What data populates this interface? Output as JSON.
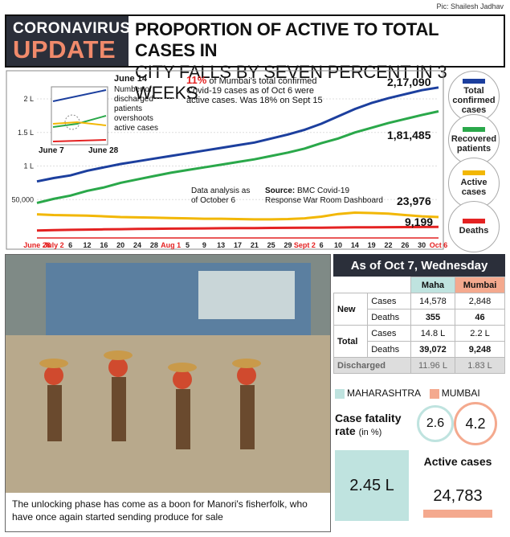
{
  "credit": "Pic: Shailesh Jadhav",
  "header": {
    "tag1": "CORONAVIRUS",
    "tag2": "UPDATE",
    "title": "PROPORTION OF ACTIVE TO TOTAL CASES IN",
    "subtitle": "CITY FALLS BY SEVEN PERCENT IN 3 WEEKS"
  },
  "chart_data": {
    "type": "line",
    "x": [
      "June 28",
      "July 2",
      "6",
      "12",
      "16",
      "20",
      "24",
      "28",
      "Aug 1",
      "5",
      "9",
      "13",
      "17",
      "21",
      "25",
      "29",
      "Sept 2",
      "6",
      "10",
      "14",
      "19",
      "22",
      "26",
      "30",
      "Oct 6"
    ],
    "ylim": [
      0,
      230000
    ],
    "yticks": [
      "50,000",
      "1 L",
      "1.5 L",
      "2 L"
    ],
    "series": [
      {
        "name": "Total confirmed cases",
        "color": "#1c3f9e",
        "values": [
          77000,
          82000,
          86000,
          93000,
          98000,
          103000,
          107000,
          111000,
          115000,
          119000,
          123000,
          127000,
          131000,
          135000,
          141000,
          147000,
          154000,
          163000,
          174000,
          185000,
          194000,
          201000,
          207000,
          213000,
          217090
        ]
      },
      {
        "name": "Recovered patients",
        "color": "#2aa84a",
        "values": [
          45000,
          51000,
          56000,
          63000,
          68000,
          75000,
          80000,
          85000,
          90000,
          94000,
          98000,
          102000,
          106000,
          110000,
          115000,
          120000,
          126000,
          134000,
          141000,
          150000,
          157000,
          164000,
          170000,
          176000,
          181485
        ]
      },
      {
        "name": "Active cases",
        "color": "#f2b705",
        "values": [
          28000,
          27000,
          26500,
          26000,
          25000,
          24000,
          23500,
          23000,
          22500,
          22000,
          21500,
          21500,
          21000,
          20500,
          20500,
          21000,
          22000,
          24500,
          28500,
          30500,
          30000,
          29000,
          27000,
          25000,
          23976
        ]
      },
      {
        "name": "Deaths",
        "color": "#e42222",
        "values": [
          4000,
          4500,
          4900,
          5300,
          5600,
          5900,
          6200,
          6500,
          6700,
          6900,
          7100,
          7300,
          7500,
          7600,
          7800,
          7900,
          8000,
          8200,
          8400,
          8600,
          8800,
          8900,
          9000,
          9100,
          9199
        ]
      }
    ],
    "labels": {
      "total": "2,17,090",
      "recovered": "1,81,485",
      "active": "23,976",
      "deaths": "9,199"
    }
  },
  "legend": [
    {
      "label": "Total confirmed cases",
      "color": "#1c3f9e"
    },
    {
      "label": "Recovered patients",
      "color": "#2aa84a"
    },
    {
      "label": "Active cases",
      "color": "#f2b705"
    },
    {
      "label": "Deaths",
      "color": "#e42222"
    }
  ],
  "annotations": {
    "inset_title": "June 14",
    "inset_text": "Number of discharged patients overshoots active cases",
    "inset_x1": "June 7",
    "inset_x2": "June 28",
    "main_pct": "11%",
    "main_text": "of Mumbai's total confirmed Covid-19 cases as of Oct 6 were active cases. Was 18% on Sept 15",
    "analysis": "Data analysis as of October 6",
    "source_bold": "Source:",
    "source": "BMC Covid-19 Response War Room Dashboard"
  },
  "caption": "The unlocking phase has come as a boon for Manori's fisherfolk, who have once again started sending produce for sale",
  "table": {
    "title": "As of Oct 7, Wednesday",
    "col1": "Maha",
    "col2": "Mumbai",
    "rows": [
      {
        "group": "New",
        "metric": "Cases",
        "maha": "14,578",
        "mumbai": "2,848"
      },
      {
        "group": "",
        "metric": "Deaths",
        "maha": "355",
        "mumbai": "46"
      },
      {
        "group": "Total",
        "metric": "Cases",
        "maha": "14.8 L",
        "mumbai": "2.2 L"
      },
      {
        "group": "",
        "metric": "Deaths",
        "maha": "39,072",
        "mumbai": "9,248"
      }
    ],
    "discharged": {
      "label": "Discharged",
      "maha": "11.96 L",
      "mumbai": "1.83 L"
    }
  },
  "states": {
    "maha": "MAHARASHTRA",
    "mumbai": "MUMBAI",
    "maha_color": "#bfe3df",
    "mumbai_color": "#f4a98e"
  },
  "cfr": {
    "label": "Case fatality rate",
    "unit": "(in %)",
    "maha": "2.6",
    "mumbai": "4.2"
  },
  "active": {
    "label": "Active cases",
    "maha": "2.45 L",
    "mumbai": "24,783"
  }
}
